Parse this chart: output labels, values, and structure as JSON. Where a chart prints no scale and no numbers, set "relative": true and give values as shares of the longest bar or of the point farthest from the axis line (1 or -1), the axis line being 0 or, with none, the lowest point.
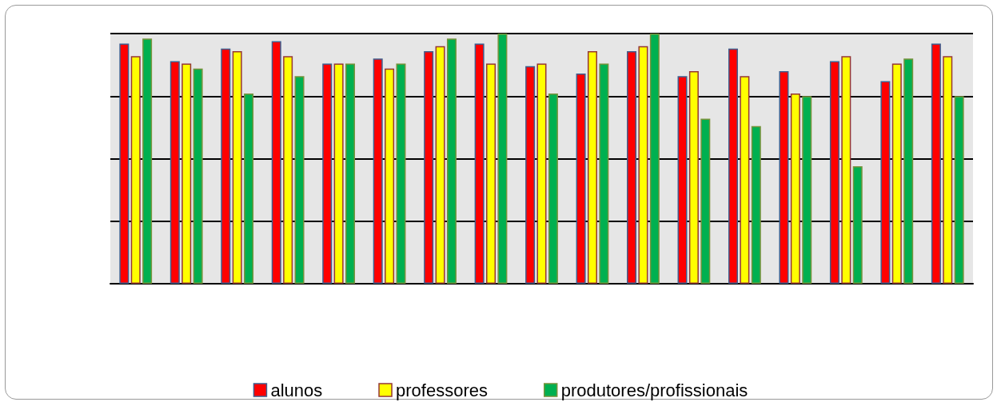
{
  "chart_data": {
    "type": "bar",
    "relative": true,
    "categories": [
      null,
      null,
      null,
      null,
      null,
      null,
      null,
      null,
      null,
      null,
      null,
      null,
      null,
      null,
      null,
      null,
      null
    ],
    "series": [
      {
        "name": "alunos",
        "color": "#ff0000",
        "values": [
          0.96,
          0.89,
          0.94,
          0.97,
          0.88,
          0.9,
          0.93,
          0.96,
          0.87,
          0.84,
          0.93,
          0.83,
          0.94,
          0.85,
          0.89,
          0.81,
          0.96
        ]
      },
      {
        "name": "professores",
        "color": "#ffff00",
        "values": [
          0.91,
          0.88,
          0.93,
          0.91,
          0.88,
          0.86,
          0.95,
          0.88,
          0.88,
          0.93,
          0.95,
          0.85,
          0.83,
          0.76,
          0.91,
          0.88,
          0.91
        ]
      },
      {
        "name": "produtores/profissionais",
        "color": "#00b050",
        "values": [
          0.98,
          0.86,
          0.76,
          0.83,
          0.88,
          0.88,
          0.98,
          1,
          0.76,
          0.88,
          1,
          0.66,
          0.63,
          0.75,
          0.47,
          0.9,
          0.75
        ]
      }
    ],
    "grid": "y",
    "legend": "bottom"
  }
}
